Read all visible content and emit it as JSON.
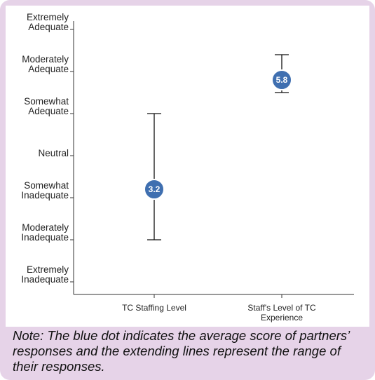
{
  "chart_data": {
    "type": "range-dot",
    "categories": [
      "TC Staffing Level",
      "Staff's Level of TC Experience"
    ],
    "values": [
      3.2,
      5.8
    ],
    "low": [
      2,
      5.5
    ],
    "high": [
      5,
      6.4
    ],
    "color": "#3f6fb0",
    "ylim": [
      0.7,
      7.2
    ],
    "yticks": [
      {
        "value": 1,
        "label": "Extremely Inadequate"
      },
      {
        "value": 2,
        "label": "Moderately Inadequate"
      },
      {
        "value": 3,
        "label": "Somewhat Inadequate"
      },
      {
        "value": 4,
        "label": "Neutral"
      },
      {
        "value": 5,
        "label": "Somewhat Adequate"
      },
      {
        "value": 6,
        "label": "Moderately Adequate"
      },
      {
        "value": 7,
        "label": "Extremely Adequate"
      }
    ],
    "note": "Note: The blue dot indicates the average score of partners’ responses and the extending lines represent the range of their responses."
  }
}
